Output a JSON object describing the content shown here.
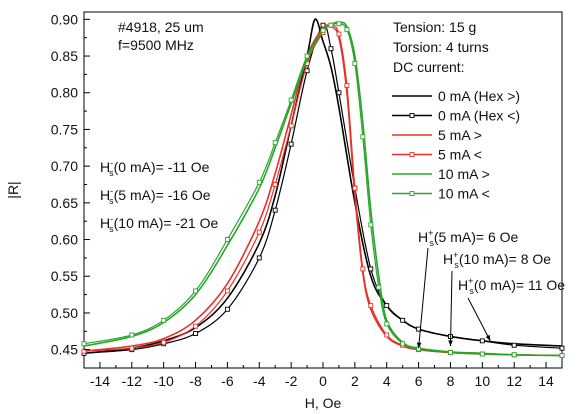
{
  "chart_data": {
    "type": "line",
    "xlabel": "H, Oe",
    "ylabel": "|R|",
    "xlim": [
      -15,
      15
    ],
    "ylim": [
      0.425,
      0.91
    ],
    "xticks": [
      "-14",
      "-12",
      "-10",
      "-8",
      "-6",
      "-4",
      "-2",
      "0",
      "2",
      "4",
      "6",
      "8",
      "10",
      "12",
      "14"
    ],
    "yticks": [
      "0.45",
      "0.50",
      "0.55",
      "0.60",
      "0.65",
      "0.70",
      "0.75",
      "0.80",
      "0.85",
      "0.90"
    ],
    "grid": false,
    "legend_placement": "top-right",
    "annotations_left": [
      "#4918, 25 um",
      "f=9500 MHz"
    ],
    "annotations_right": [
      "Tension: 15 g",
      "Torsion: 4 turns",
      "DC current:"
    ],
    "left_notes": [
      {
        "sub": "s",
        "sup": "-",
        "text": "(0 mA)= -11 Oe"
      },
      {
        "sub": "s",
        "sup": "-",
        "text": "(5 mA)= -16 Oe"
      },
      {
        "sub": "s",
        "sup": "-",
        "text": "(10 mA)= -21 Oe"
      }
    ],
    "right_notes": [
      {
        "sub": "s",
        "sup": "+",
        "text": "(5 mA)= 6 Oe"
      },
      {
        "sub": "s",
        "sup": "+",
        "text": "(10 mA)= 8 Oe"
      },
      {
        "sub": "s",
        "sup": "+",
        "text": "(0 mA)= 11 Oe"
      }
    ],
    "note_prefix": "H",
    "arrow_targets": [
      6,
      8,
      10.5
    ],
    "series": [
      {
        "name": "0 mA (Hex >)",
        "color": "#000000",
        "marker": "none",
        "x": [
          -15,
          -12,
          -10,
          -8,
          -6,
          -4,
          -3,
          -2,
          -1,
          -0.5,
          0,
          0.5,
          1,
          2,
          3,
          4,
          5,
          6,
          8,
          10,
          12,
          15
        ],
        "y": [
          0.445,
          0.452,
          0.462,
          0.48,
          0.52,
          0.595,
          0.66,
          0.755,
          0.85,
          0.9,
          0.87,
          0.835,
          0.78,
          0.65,
          0.55,
          0.51,
          0.49,
          0.478,
          0.468,
          0.462,
          0.458,
          0.455
        ]
      },
      {
        "name": "0 mA (Hex <)",
        "color": "#000000",
        "marker": "square",
        "x": [
          -15,
          -12,
          -10,
          -8,
          -6,
          -4,
          -3,
          -2,
          -1,
          0,
          0.5,
          1,
          2,
          3,
          4,
          5,
          6,
          8,
          10,
          12,
          15
        ],
        "y": [
          0.445,
          0.45,
          0.458,
          0.472,
          0.505,
          0.575,
          0.64,
          0.73,
          0.83,
          0.892,
          0.86,
          0.8,
          0.67,
          0.56,
          0.51,
          0.49,
          0.478,
          0.468,
          0.462,
          0.456,
          0.452
        ]
      },
      {
        "name": "5 mA >",
        "color": "#e8302a",
        "marker": "none",
        "x": [
          -15,
          -12,
          -10,
          -8,
          -6,
          -4,
          -3,
          -2,
          -1,
          0,
          0.5,
          1,
          1.5,
          2,
          2.5,
          3,
          4,
          5,
          6,
          8,
          10,
          12,
          15
        ],
        "y": [
          0.448,
          0.455,
          0.465,
          0.49,
          0.54,
          0.625,
          0.69,
          0.77,
          0.85,
          0.888,
          0.89,
          0.875,
          0.8,
          0.66,
          0.555,
          0.505,
          0.468,
          0.455,
          0.45,
          0.446,
          0.444,
          0.443,
          0.442
        ]
      },
      {
        "name": "5 mA <",
        "color": "#e8302a",
        "marker": "square",
        "x": [
          -15,
          -12,
          -10,
          -8,
          -6,
          -4,
          -3,
          -2,
          -1,
          0,
          0.5,
          1,
          1.5,
          2,
          2.5,
          3,
          4,
          5,
          6,
          8,
          10,
          12,
          15
        ],
        "y": [
          0.448,
          0.452,
          0.46,
          0.482,
          0.53,
          0.61,
          0.675,
          0.755,
          0.84,
          0.882,
          0.892,
          0.88,
          0.81,
          0.67,
          0.56,
          0.51,
          0.47,
          0.456,
          0.45,
          0.446,
          0.444,
          0.443,
          0.442
        ]
      },
      {
        "name": "10 mA >",
        "color": "#2aa52a",
        "marker": "none",
        "x": [
          -15,
          -12,
          -10,
          -8,
          -6,
          -4,
          -3,
          -2,
          -1,
          0,
          0.5,
          1,
          1.5,
          2,
          2.5,
          3,
          3.5,
          4,
          5,
          6,
          8,
          10,
          12,
          15
        ],
        "y": [
          0.455,
          0.468,
          0.487,
          0.525,
          0.592,
          0.67,
          0.725,
          0.785,
          0.845,
          0.885,
          0.893,
          0.896,
          0.89,
          0.85,
          0.76,
          0.64,
          0.55,
          0.49,
          0.46,
          0.452,
          0.447,
          0.445,
          0.443,
          0.442
        ]
      },
      {
        "name": "10 mA <",
        "color": "#2aa52a",
        "marker": "square",
        "x": [
          -15,
          -12,
          -10,
          -8,
          -6,
          -4,
          -3,
          -2,
          -1,
          0,
          0.5,
          1,
          1.5,
          2,
          2.5,
          3,
          3.5,
          4,
          5,
          6,
          8,
          10,
          12,
          15
        ],
        "y": [
          0.458,
          0.47,
          0.49,
          0.53,
          0.6,
          0.678,
          0.732,
          0.79,
          0.85,
          0.885,
          0.892,
          0.894,
          0.886,
          0.84,
          0.74,
          0.62,
          0.535,
          0.485,
          0.458,
          0.451,
          0.446,
          0.444,
          0.443,
          0.442
        ]
      }
    ]
  }
}
